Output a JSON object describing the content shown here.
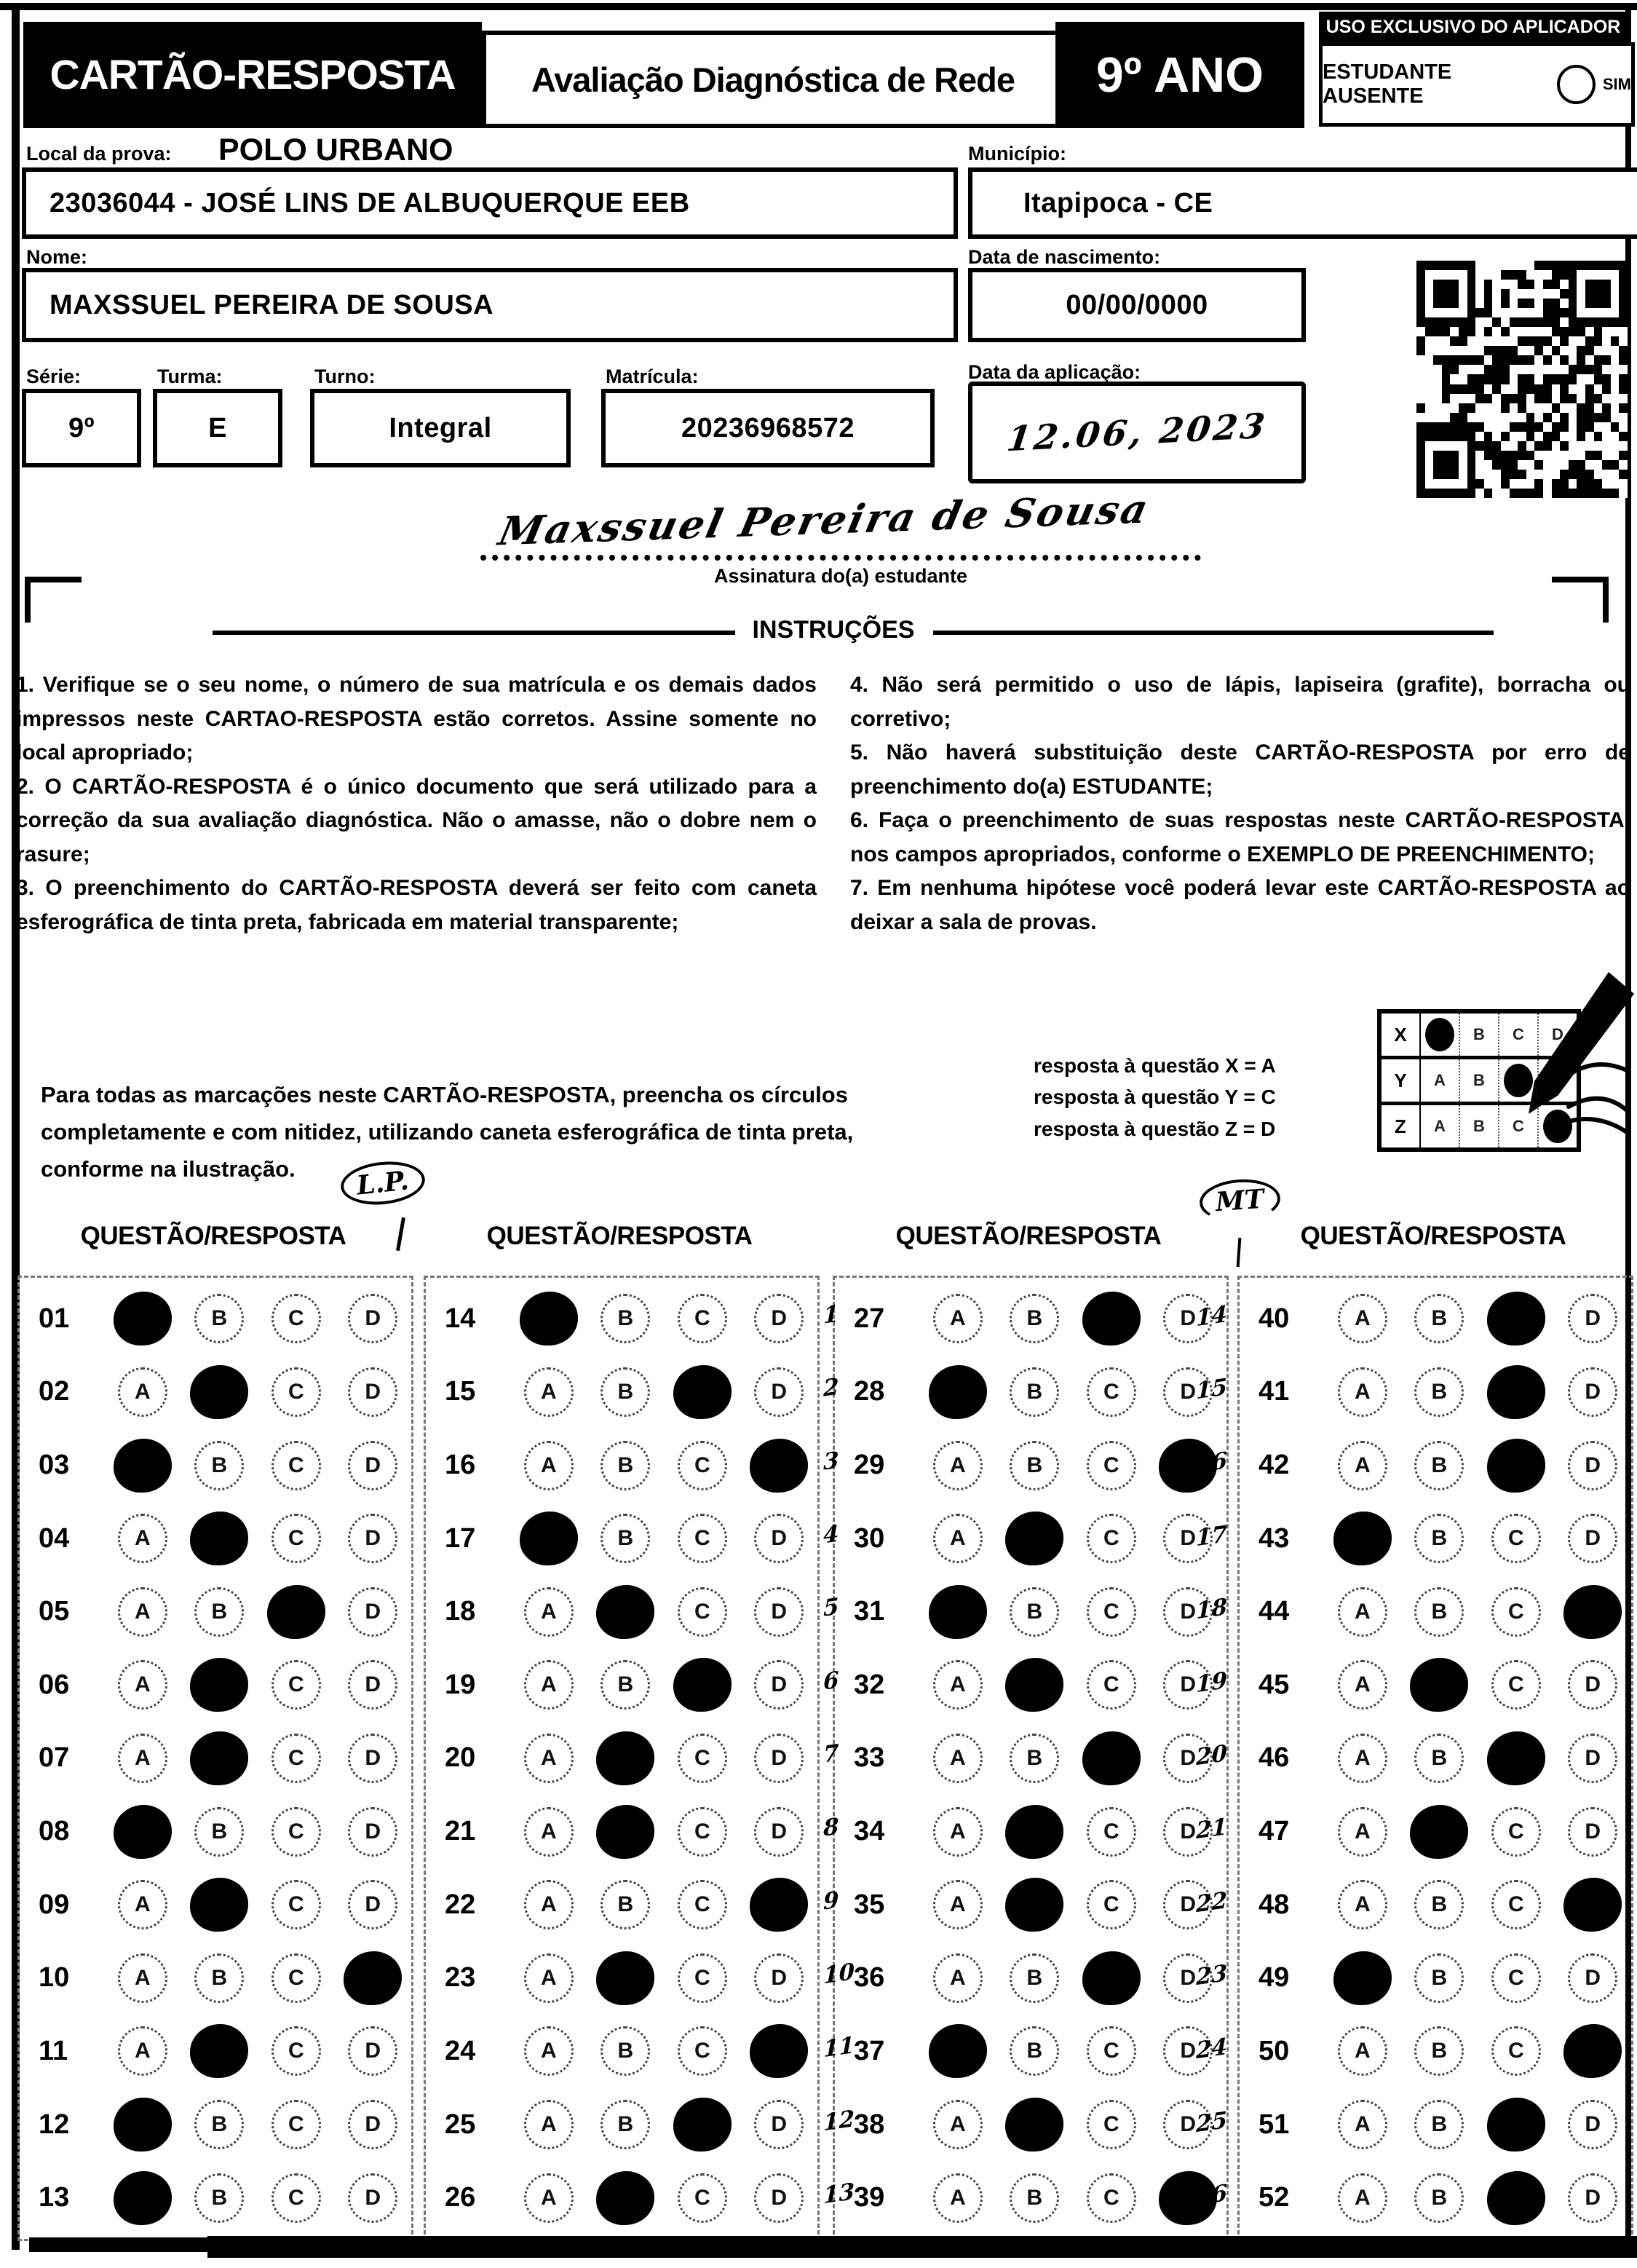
{
  "header": {
    "card_title": "CARTÃO-RESPOSTA",
    "exam_title": "Avaliação Diagnóstica de Rede",
    "grade": "9º ANO",
    "applicator_strip": "USO EXCLUSIVO DO APLICADOR",
    "absent_label": "ESTUDANTE AUSENTE",
    "absent_option": "SIM"
  },
  "form": {
    "local_label": "Local da prova:",
    "local_value": "POLO URBANO",
    "school_value": "23036044 - JOSÉ LINS DE ALBUQUERQUE EEB",
    "municipio_label": "Município:",
    "municipio_value": "Itapipoca - CE",
    "nome_label": "Nome:",
    "nome_value": "MAXSSUEL PEREIRA DE SOUSA",
    "nascimento_label": "Data de nascimento:",
    "nascimento_value": "00/00/0000",
    "serie_label": "Série:",
    "serie_value": "9º",
    "turma_label": "Turma:",
    "turma_value": "E",
    "turno_label": "Turno:",
    "turno_value": "Integral",
    "matricula_label": "Matrícula:",
    "matricula_value": "20236968572",
    "aplicacao_label": "Data da aplicação:",
    "aplicacao_value": "12.06, 2023",
    "qr_icon": "qr-code"
  },
  "signature": {
    "value": "Maxssuel Pereira de Sousa",
    "caption": "Assinatura do(a) estudante"
  },
  "instructions": {
    "title": "INSTRUÇÕES",
    "left": [
      "1. Verifique se o seu nome, o número de sua matrícula e os demais dados impressos neste CARTAO-RESPOSTA estão corretos. Assine somente no local apropriado;",
      "2. O CARTÃO-RESPOSTA é o único documento que será utilizado para a correção da sua avaliação diagnóstica. Não o amasse, não o dobre nem o rasure;",
      "3. O preenchimento do CARTÃO-RESPOSTA deverá ser feito com caneta esferográfica de tinta preta, fabricada em material transparente;"
    ],
    "right": [
      "4. Não será permitido o uso de lápis, lapiseira (grafite), borracha ou corretivo;",
      "5. Não haverá substituição deste CARTÃO-RESPOSTA por erro de preenchimento do(a) ESTUDANTE;",
      "6. Faça o preenchimento de suas respostas neste CARTÃO-RESPOSTA, nos campos apropriados, conforme o EXEMPLO DE PREENCHIMENTO;",
      "7. Em nenhuma hipótese você poderá levar este CARTÃO-RESPOSTA ao deixar a sala de provas."
    ]
  },
  "example": {
    "text": "Para todas as marcações neste CARTÃO-RESPOSTA, preencha os círculos completamente e com nitidez, utilizando caneta esferográfica de tinta preta, conforme na ilustração.",
    "legend": [
      "resposta à questão X = A",
      "resposta à questão Y = C",
      "resposta à questão Z = D"
    ],
    "grid": {
      "options": [
        "A",
        "B",
        "C",
        "D"
      ],
      "rows": [
        {
          "label": "X",
          "marked": "A"
        },
        {
          "label": "Y",
          "marked": "C"
        },
        {
          "label": "Z",
          "marked": "D"
        }
      ]
    },
    "pen_icon": "pen-hand"
  },
  "annotations": {
    "lp_label": "L.P.",
    "mt_label": "MT"
  },
  "answers": {
    "column_header": "QUESTÃO/RESPOSTA",
    "options": [
      "A",
      "B",
      "C",
      "D"
    ],
    "columns": [
      {
        "questions": [
          {
            "num": "01",
            "marked": "A",
            "note": ""
          },
          {
            "num": "02",
            "marked": "B",
            "note": ""
          },
          {
            "num": "03",
            "marked": "A",
            "note": ""
          },
          {
            "num": "04",
            "marked": "B",
            "note": ""
          },
          {
            "num": "05",
            "marked": "C",
            "note": ""
          },
          {
            "num": "06",
            "marked": "B",
            "note": ""
          },
          {
            "num": "07",
            "marked": "B",
            "note": ""
          },
          {
            "num": "08",
            "marked": "A",
            "note": ""
          },
          {
            "num": "09",
            "marked": "B",
            "note": ""
          },
          {
            "num": "10",
            "marked": "D",
            "note": ""
          },
          {
            "num": "11",
            "marked": "B",
            "note": ""
          },
          {
            "num": "12",
            "marked": "A",
            "note": ""
          },
          {
            "num": "13",
            "marked": "A",
            "note": ""
          }
        ]
      },
      {
        "questions": [
          {
            "num": "14",
            "marked": "A",
            "note": ""
          },
          {
            "num": "15",
            "marked": "C",
            "note": ""
          },
          {
            "num": "16",
            "marked": "D",
            "note": ""
          },
          {
            "num": "17",
            "marked": "A",
            "note": ""
          },
          {
            "num": "18",
            "marked": "B",
            "note": ""
          },
          {
            "num": "19",
            "marked": "C",
            "note": ""
          },
          {
            "num": "20",
            "marked": "B",
            "note": ""
          },
          {
            "num": "21",
            "marked": "B",
            "note": ""
          },
          {
            "num": "22",
            "marked": "D",
            "note": ""
          },
          {
            "num": "23",
            "marked": "B",
            "note": ""
          },
          {
            "num": "24",
            "marked": "D",
            "note": ""
          },
          {
            "num": "25",
            "marked": "C",
            "note": ""
          },
          {
            "num": "26",
            "marked": "B",
            "note": ""
          }
        ]
      },
      {
        "questions": [
          {
            "num": "27",
            "marked": "C",
            "note": "1"
          },
          {
            "num": "28",
            "marked": "A",
            "note": "2"
          },
          {
            "num": "29",
            "marked": "D",
            "note": "3"
          },
          {
            "num": "30",
            "marked": "B",
            "note": "4"
          },
          {
            "num": "31",
            "marked": "A",
            "note": "5"
          },
          {
            "num": "32",
            "marked": "B",
            "note": "6"
          },
          {
            "num": "33",
            "marked": "C",
            "note": "7"
          },
          {
            "num": "34",
            "marked": "B",
            "note": "8"
          },
          {
            "num": "35",
            "marked": "B",
            "note": "9"
          },
          {
            "num": "36",
            "marked": "C",
            "note": "10"
          },
          {
            "num": "37",
            "marked": "A",
            "note": "11"
          },
          {
            "num": "38",
            "marked": "B",
            "note": "12"
          },
          {
            "num": "39",
            "marked": "D",
            "note": "13"
          }
        ]
      },
      {
        "questions": [
          {
            "num": "40",
            "marked": "C",
            "note": "14"
          },
          {
            "num": "41",
            "marked": "C",
            "note": "15"
          },
          {
            "num": "42",
            "marked": "C",
            "note": "16"
          },
          {
            "num": "43",
            "marked": "A",
            "note": "17"
          },
          {
            "num": "44",
            "marked": "D",
            "note": "18"
          },
          {
            "num": "45",
            "marked": "B",
            "note": "19"
          },
          {
            "num": "46",
            "marked": "C",
            "note": "20"
          },
          {
            "num": "47",
            "marked": "B",
            "note": "21"
          },
          {
            "num": "48",
            "marked": "D",
            "note": "22"
          },
          {
            "num": "49",
            "marked": "A",
            "note": "23"
          },
          {
            "num": "50",
            "marked": "D",
            "note": "24"
          },
          {
            "num": "51",
            "marked": "C",
            "note": "25"
          },
          {
            "num": "52",
            "marked": "C",
            "note": "26"
          }
        ]
      }
    ]
  }
}
